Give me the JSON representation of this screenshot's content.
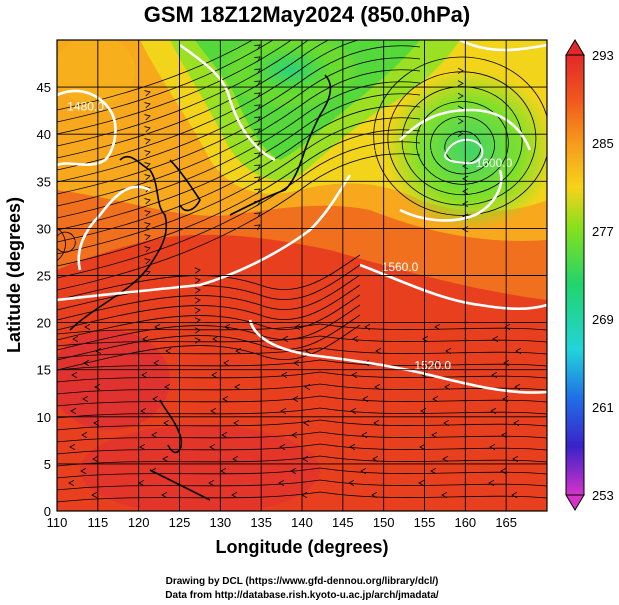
{
  "title": "GSM 18Z12May2024 (850.0hPa)",
  "xlabel": "Longitude (degrees)",
  "ylabel": "Latitude  (degrees)",
  "credits": [
    "Drawing by DCL (https://www.gfd-dennou.org/library/dcl/)",
    "Data from http://database.rish.kyoto-u.ac.jp/arch/jmadata/"
  ],
  "map": {
    "lon_range": [
      110,
      170
    ],
    "lat_range": [
      0,
      50
    ],
    "x_ticks": [
      "110",
      "115",
      "120",
      "125",
      "130",
      "135",
      "140",
      "145",
      "150",
      "155",
      "160",
      "165"
    ],
    "y_ticks": [
      "0",
      "5",
      "10",
      "15",
      "20",
      "25",
      "30",
      "35",
      "40",
      "45"
    ],
    "colorbar": {
      "ticks": [
        "293",
        "285",
        "277",
        "269",
        "261",
        "253"
      ],
      "min": 253,
      "max": 293,
      "colors": [
        "#d633c9",
        "#3a22c9",
        "#1f88e6",
        "#22d4d9",
        "#22d46b",
        "#7fe01f",
        "#f7d21a",
        "#f79a1c",
        "#f0561e",
        "#e3282a"
      ]
    },
    "contour_labels": [
      {
        "text": "1480.0",
        "lon": 113.5,
        "lat": 42.5
      },
      {
        "text": "1600.0",
        "lon": 163.5,
        "lat": 36.5
      },
      {
        "text": "1560.0",
        "lon": 152,
        "lat": 25.5
      },
      {
        "text": "1520.0",
        "lon": 156,
        "lat": 15
      }
    ]
  }
}
